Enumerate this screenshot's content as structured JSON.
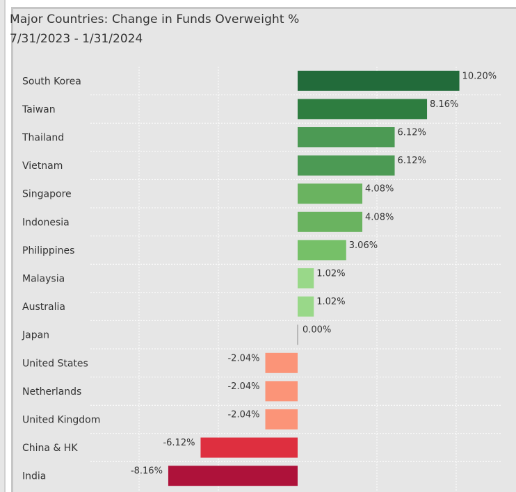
{
  "title": "Major Countries:  Change in Funds Overweight %",
  "subtitle": "7/31/2023 - 1/31/2024",
  "chart_data": {
    "type": "bar",
    "orientation": "horizontal",
    "title": "Major Countries:  Change in Funds Overweight %",
    "subtitle": "7/31/2023 - 1/31/2024",
    "categories": [
      "South Korea",
      "Taiwan",
      "Thailand",
      "Vietnam",
      "Singapore",
      "Indonesia",
      "Philippines",
      "Malaysia",
      "Australia",
      "Japan",
      "United States",
      "Netherlands",
      "United Kingdom",
      "China & HK",
      "India"
    ],
    "values": [
      10.2,
      8.16,
      6.12,
      6.12,
      4.08,
      4.08,
      3.06,
      1.02,
      1.02,
      0.0,
      -2.04,
      -2.04,
      -2.04,
      -6.12,
      -8.16
    ],
    "value_labels": [
      "10.20%",
      "8.16%",
      "6.12%",
      "6.12%",
      "4.08%",
      "4.08%",
      "3.06%",
      "1.02%",
      "1.02%",
      "0.00%",
      "-2.04%",
      "-2.04%",
      "-2.04%",
      "-6.12%",
      "-8.16%"
    ],
    "bar_colors": [
      "#226b3a",
      "#2e7d40",
      "#4c9a54",
      "#4c9a54",
      "#6ab360",
      "#6ab360",
      "#76c068",
      "#99d889",
      "#99d889",
      "#b8b8b8",
      "#fb9478",
      "#fb9478",
      "#fb9478",
      "#de2f3f",
      "#ae123a"
    ],
    "xlim": [
      -12.5,
      12.5
    ],
    "grid": true,
    "legend": "none"
  }
}
